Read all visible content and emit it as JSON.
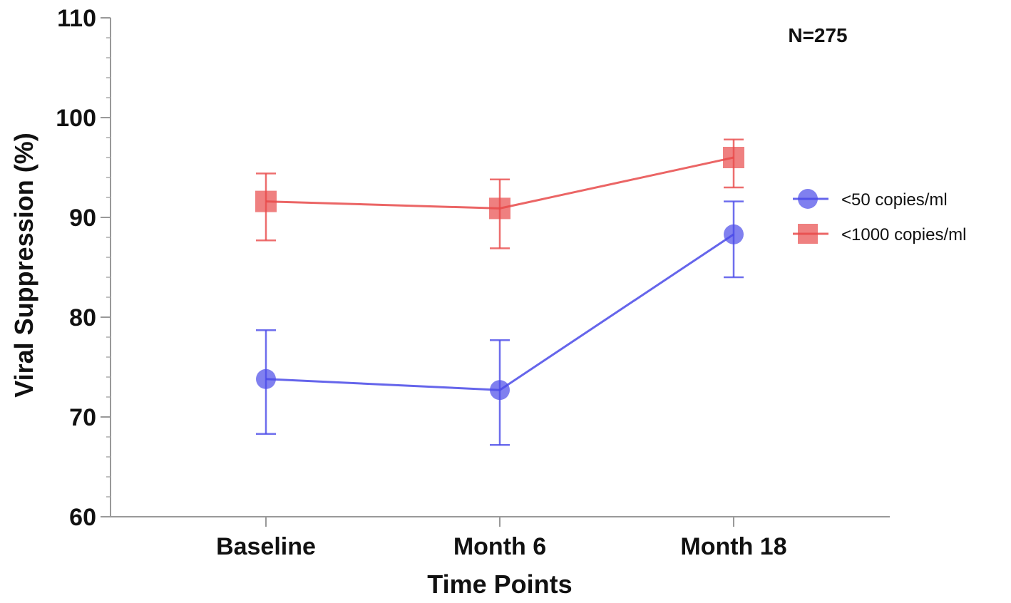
{
  "chart_data": {
    "type": "line",
    "title": "",
    "annotation": "N=275",
    "xlabel": "Time Points",
    "ylabel": "Viral Suppression (%)",
    "ylim": [
      60,
      110
    ],
    "yticks": [
      60,
      70,
      80,
      90,
      100,
      110
    ],
    "categories": [
      "Baseline",
      "Month 6",
      "Month 18"
    ],
    "grid": false,
    "legend_position": "right",
    "series": [
      {
        "name": "<50 copies/ml",
        "color": "#4a4ae8",
        "marker": "circle",
        "values": [
          73.8,
          72.7,
          88.3
        ],
        "error_low": [
          68.3,
          67.2,
          84.0
        ],
        "error_high": [
          78.7,
          77.7,
          91.6
        ]
      },
      {
        "name": "<1000 copies/ml",
        "color": "#e84a4a",
        "marker": "square",
        "values": [
          91.6,
          90.9,
          96.0
        ],
        "error_low": [
          87.7,
          86.9,
          93.0
        ],
        "error_high": [
          94.4,
          93.8,
          97.8
        ]
      }
    ]
  }
}
